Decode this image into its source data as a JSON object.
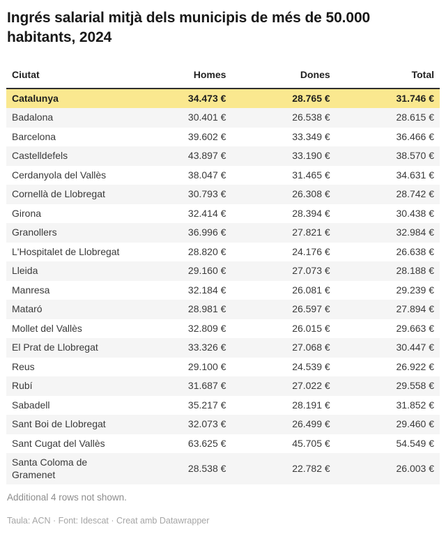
{
  "title": "Ingrés salarial mitjà dels municipis de més de 50.000 habitants, 2024",
  "note": "Additional 4 rows not shown.",
  "source": "Taula: ACN · Font: Idescat · Creat amb Datawrapper",
  "colors": {
    "highlight_row_background": "#fae88f",
    "stripe_row_background": "#f5f5f5",
    "header_rule": "#2e2e2e"
  },
  "chart_data": {
    "type": "table",
    "title": "Ingrés salarial mitjà dels municipis de més de 50.000 habitants, 2024",
    "columns": [
      "Ciutat",
      "Homes",
      "Dones",
      "Total"
    ],
    "highlighted_row": "Catalunya",
    "currency": "€",
    "rows": [
      {
        "city": "Catalunya",
        "homes": "34.473 €",
        "dones": "28.765 €",
        "total": "31.746 €",
        "highlight": true
      },
      {
        "city": "Badalona",
        "homes": "30.401 €",
        "dones": "26.538 €",
        "total": "28.615 €"
      },
      {
        "city": "Barcelona",
        "homes": "39.602 €",
        "dones": "33.349 €",
        "total": "36.466 €"
      },
      {
        "city": "Castelldefels",
        "homes": "43.897 €",
        "dones": "33.190 €",
        "total": "38.570 €"
      },
      {
        "city": "Cerdanyola del Vallès",
        "homes": "38.047 €",
        "dones": "31.465 €",
        "total": "34.631 €"
      },
      {
        "city": "Cornellà de Llobregat",
        "homes": "30.793 €",
        "dones": "26.308 €",
        "total": "28.742 €"
      },
      {
        "city": "Girona",
        "homes": "32.414 €",
        "dones": "28.394 €",
        "total": "30.438 €"
      },
      {
        "city": "Granollers",
        "homes": "36.996 €",
        "dones": "27.821 €",
        "total": "32.984 €"
      },
      {
        "city": "L'Hospitalet de Llobregat",
        "homes": "28.820 €",
        "dones": "24.176 €",
        "total": "26.638 €"
      },
      {
        "city": "Lleida",
        "homes": "29.160 €",
        "dones": "27.073 €",
        "total": "28.188 €"
      },
      {
        "city": "Manresa",
        "homes": "32.184 €",
        "dones": "26.081 €",
        "total": "29.239 €"
      },
      {
        "city": "Mataró",
        "homes": "28.981 €",
        "dones": "26.597 €",
        "total": "27.894 €"
      },
      {
        "city": "Mollet del Vallès",
        "homes": "32.809 €",
        "dones": "26.015 €",
        "total": "29.663 €"
      },
      {
        "city": "El Prat de Llobregat",
        "homes": "33.326 €",
        "dones": "27.068 €",
        "total": "30.447 €"
      },
      {
        "city": "Reus",
        "homes": "29.100 €",
        "dones": "24.539 €",
        "total": "26.922 €"
      },
      {
        "city": "Rubí",
        "homes": "31.687 €",
        "dones": "27.022 €",
        "total": "29.558 €"
      },
      {
        "city": "Sabadell",
        "homes": "35.217 €",
        "dones": "28.191 €",
        "total": "31.852 €"
      },
      {
        "city": "Sant Boi de Llobregat",
        "homes": "32.073 €",
        "dones": "26.499 €",
        "total": "29.460 €"
      },
      {
        "city": "Sant Cugat del Vallès",
        "homes": "63.625 €",
        "dones": "45.705 €",
        "total": "54.549 €"
      },
      {
        "city": "Santa Coloma de Gramenet",
        "homes": "28.538 €",
        "dones": "22.782 €",
        "total": "26.003 €"
      }
    ]
  }
}
